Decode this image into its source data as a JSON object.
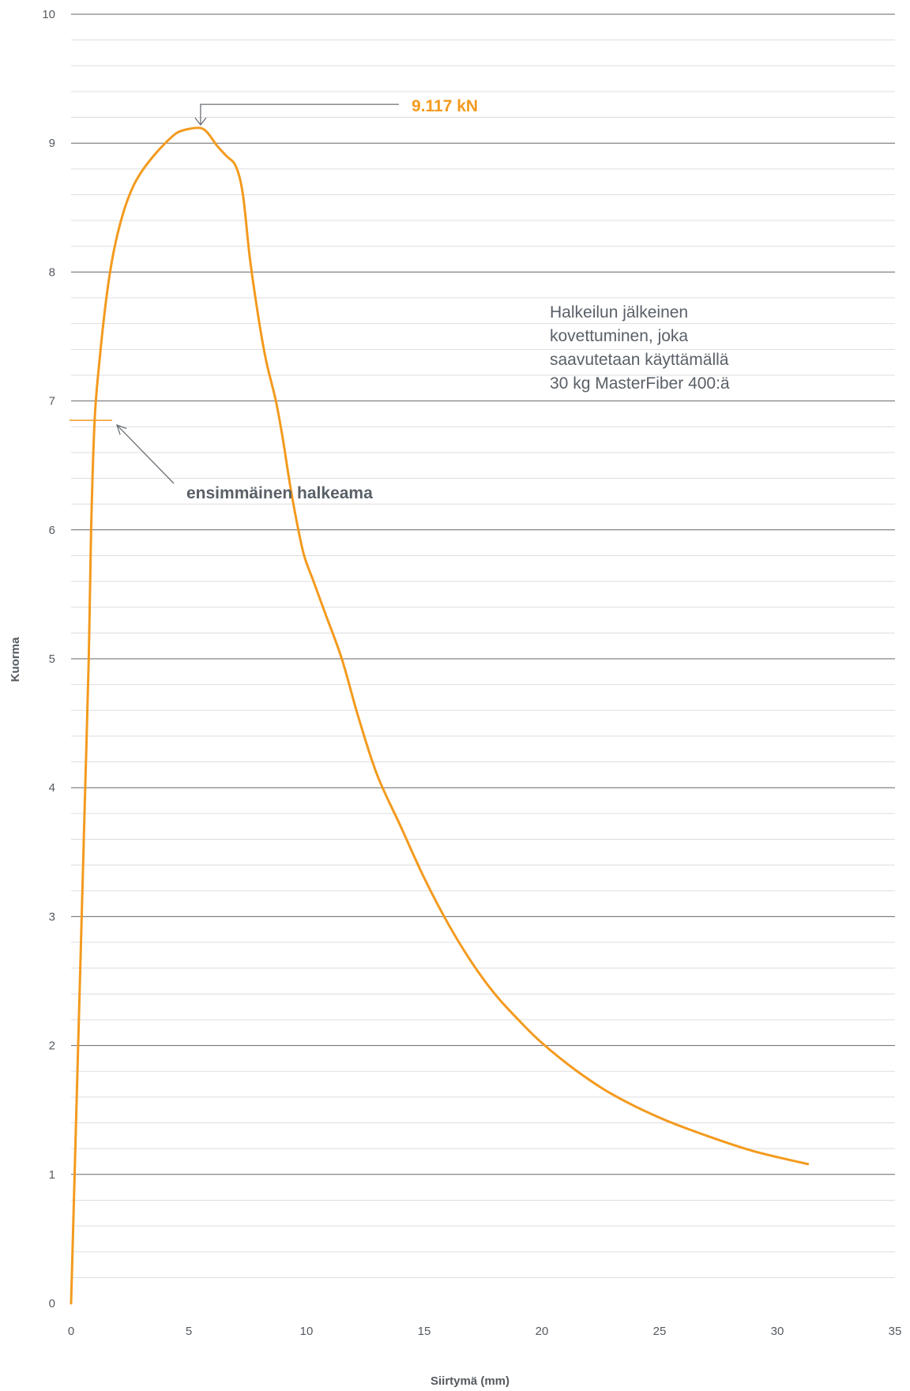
{
  "chart_data": {
    "type": "line",
    "xlabel": "Siirtymä (mm)",
    "ylabel": "Kuorma",
    "xlim": [
      0,
      35
    ],
    "ylim": [
      0,
      10
    ],
    "x_ticks": [
      0,
      5,
      10,
      15,
      20,
      25,
      30,
      35
    ],
    "y_ticks": [
      0,
      1,
      2,
      3,
      4,
      5,
      6,
      7,
      8,
      9,
      10
    ],
    "grid": true,
    "minor_grid": true,
    "series": [
      {
        "color": "#F39A1E",
        "x": [
          0.0,
          0.15,
          0.3,
          0.45,
          0.6,
          0.75,
          0.85,
          1.0,
          1.2,
          1.5,
          1.8,
          2.2,
          2.6,
          3.0,
          3.5,
          4.0,
          4.5,
          5.0,
          5.5,
          5.8,
          6.2,
          6.6,
          7.0,
          7.3,
          7.6,
          8.0,
          8.3,
          8.7,
          9.0,
          9.3,
          9.6,
          9.9,
          10.3,
          10.8,
          11.5,
          12.2,
          13.0,
          14.0,
          15.0,
          16.0,
          17.0,
          18.0,
          19.0,
          20.0,
          21.5,
          23.0,
          25.0,
          27.0,
          29.0,
          31.3
        ],
        "y": [
          0.0,
          1.0,
          2.0,
          3.0,
          4.0,
          5.0,
          6.0,
          6.85,
          7.3,
          7.8,
          8.15,
          8.45,
          8.65,
          8.78,
          8.9,
          9.0,
          9.08,
          9.11,
          9.117,
          9.08,
          8.98,
          8.9,
          8.82,
          8.6,
          8.1,
          7.6,
          7.3,
          7.0,
          6.7,
          6.35,
          6.05,
          5.8,
          5.6,
          5.35,
          5.0,
          4.55,
          4.1,
          3.7,
          3.3,
          2.95,
          2.65,
          2.4,
          2.2,
          2.02,
          1.8,
          1.62,
          1.44,
          1.3,
          1.18,
          1.08
        ]
      }
    ],
    "annotations": {
      "peak_label": "9.117 kN",
      "first_crack_label": "ensimmäinen halkeama",
      "first_crack_value": 6.85,
      "note_lines": [
        "Halkeilun jälkeinen",
        "kovettuminen, joka",
        "saavutetaan käyttämällä",
        "30 kg MasterFiber 400:ä"
      ]
    },
    "colors": {
      "line": "#F39A1E",
      "grid_major": "#666666",
      "grid_minor": "#dddddd",
      "text": "#555a60"
    }
  }
}
